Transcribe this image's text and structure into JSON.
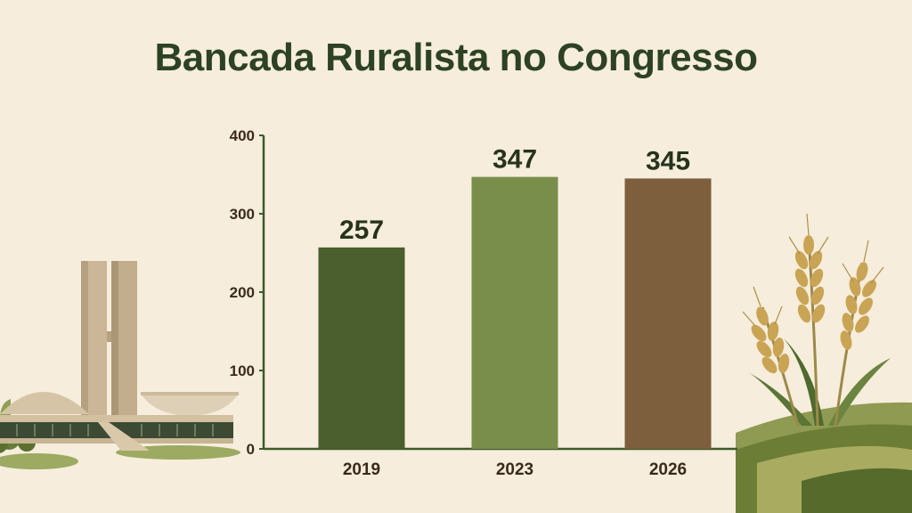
{
  "chart_data": {
    "type": "bar",
    "title": "Bancada Ruralista no Congresso",
    "categories": [
      "2019",
      "2023",
      "2026"
    ],
    "values": [
      257,
      347,
      345
    ],
    "yticks": [
      0,
      100,
      200,
      300,
      400
    ],
    "ylim": [
      0,
      400
    ],
    "grid": false,
    "legend": "none",
    "colors": [
      "#4a5e2e",
      "#7a8e4c",
      "#7d5f3e"
    ],
    "axis_color": "#3d5a2a"
  },
  "illustrations": {
    "left": "congress-building-illustration",
    "right": "wheat-field-illustration"
  }
}
